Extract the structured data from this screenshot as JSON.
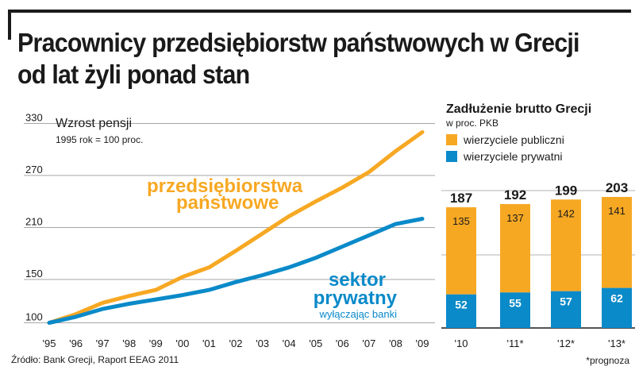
{
  "title_line1": "Pracownicy przedsiębiorstw państwowych w Grecji",
  "title_line2": "od lat żyli ponad stan",
  "source": "Źródło: Bank Grecji, Raport EEAG 2011",
  "footnote": "*prognoza",
  "colors": {
    "orange": "#f7a823",
    "blue": "#0a8ac9",
    "dark": "#1a1a1a",
    "grid": "#9a9a9a"
  },
  "chart_data": [
    {
      "type": "line",
      "title": "Wzrost pensji",
      "subtitle": "1995 rok = 100 proc.",
      "x": [
        "'95",
        "'96",
        "'97",
        "'98",
        "'99",
        "'00",
        "'01",
        "'02",
        "'03",
        "'04",
        "'05",
        "'06",
        "'07",
        "'08",
        "'09"
      ],
      "yticks": [
        100,
        150,
        210,
        270,
        330
      ],
      "ylim": [
        95,
        335
      ],
      "grid": true,
      "series": [
        {
          "name": "przedsiębiorstwa państwowe",
          "label_lines": [
            "przedsiębiorstwa",
            "państwowe"
          ],
          "color": "#f7a823",
          "values": [
            100,
            110,
            123,
            131,
            138,
            153,
            164,
            183,
            203,
            223,
            240,
            256,
            274,
            298,
            320
          ]
        },
        {
          "name": "sektor prywatny",
          "label_lines": [
            "sektor",
            "prywatny"
          ],
          "note": "wyłączając banki",
          "color": "#0a8ac9",
          "values": [
            100,
            107,
            116,
            122,
            127,
            132,
            138,
            147,
            155,
            164,
            175,
            188,
            201,
            214,
            220
          ]
        }
      ]
    },
    {
      "type": "bar",
      "stacked": true,
      "title": "Zadłużenie brutto Grecji",
      "subtitle": "w proc. PKB",
      "categories": [
        "'10",
        "'11*",
        "'12*",
        "'13*"
      ],
      "totals": [
        187,
        192,
        199,
        203
      ],
      "series": [
        {
          "name": "wierzyciele prywatni",
          "color": "#0a8ac9",
          "values": [
            52,
            55,
            57,
            62
          ]
        },
        {
          "name": "wierzyciele publiczni",
          "color": "#f7a823",
          "values": [
            135,
            137,
            142,
            141
          ]
        }
      ],
      "legend": [
        "wierzyciele publiczni",
        "wierzyciele prywatni"
      ],
      "ylim": [
        0,
        203
      ]
    }
  ]
}
